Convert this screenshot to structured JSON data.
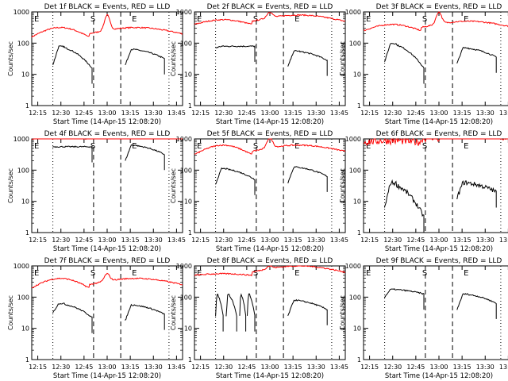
{
  "chart_data": {
    "type": "line",
    "ylabel": "Counts/sec",
    "xlabel": "Start Time (14-Apr-15 12:08:20)",
    "y_scale": "log",
    "ylim": [
      1,
      1000
    ],
    "y_ticks": [
      "1",
      "10",
      "100",
      "1000"
    ],
    "x_ticks": [
      "12:15",
      "12:30",
      "12:45",
      "13:00",
      "13:15",
      "13:30",
      "13:45"
    ],
    "legend_colors": {
      "events": "#000000",
      "lld": "#ff0000"
    },
    "markers": {
      "E_left": "E",
      "S": "S",
      "E_right": "E"
    },
    "panels": [
      {
        "title": "Det 1f BLACK = Events, RED = LLD"
      },
      {
        "title": "Det 2f BLACK = Events, RED = LLD"
      },
      {
        "title": "Det 3f BLACK = Events, RED = LLD"
      },
      {
        "title": "Det 4f BLACK = Events, RED = LLD"
      },
      {
        "title": "Det 5f BLACK = Events, RED = LLD"
      },
      {
        "title": "Det 6f BLACK = Events, RED = LLD"
      },
      {
        "title": "Det 7f BLACK = Events, RED = LLD"
      },
      {
        "title": "Det 8f BLACK = Events, RED = LLD"
      },
      {
        "title": "Det 9f BLACK = Events, RED = LLD"
      }
    ]
  }
}
